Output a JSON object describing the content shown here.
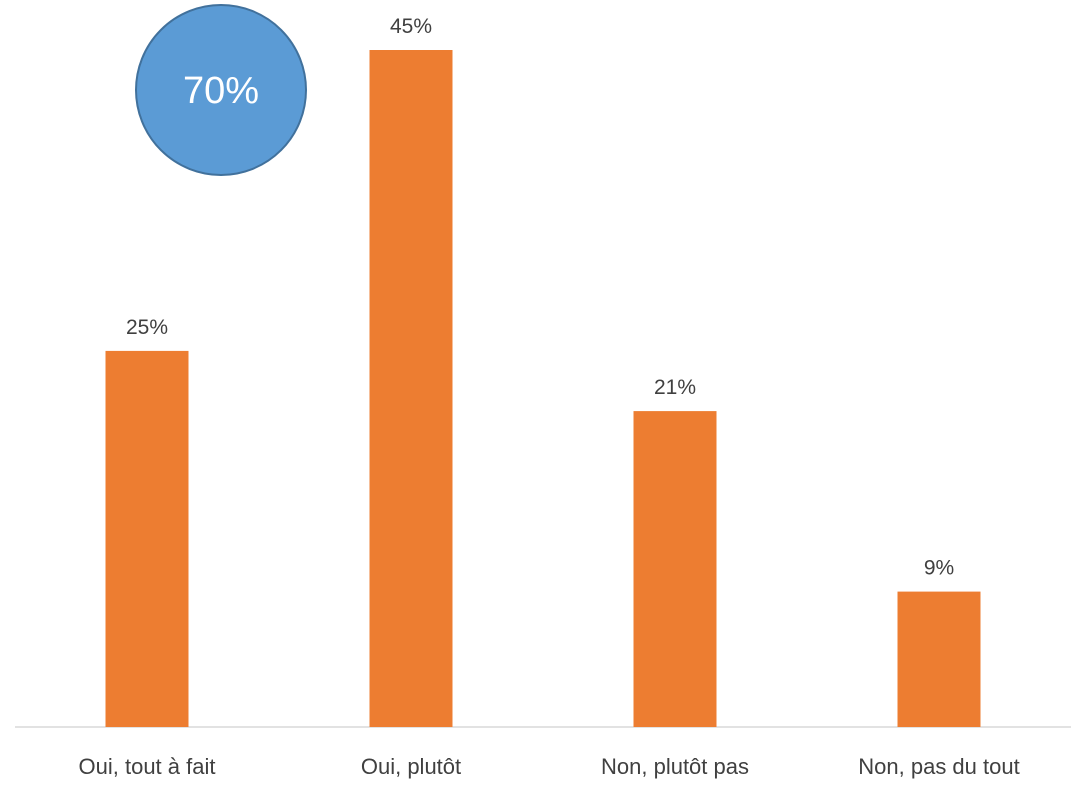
{
  "chart_data": {
    "type": "bar",
    "categories": [
      "Oui, tout à fait",
      "Oui, plutôt",
      "Non, plutôt pas",
      "Non, pas du tout"
    ],
    "values": [
      25,
      45,
      21,
      9
    ],
    "value_labels": [
      "25%",
      "45%",
      "21%",
      "9%"
    ],
    "title": "",
    "xlabel": "",
    "ylabel": "",
    "ylim": [
      0,
      45
    ],
    "grid": false,
    "legend": "none",
    "bar_color": "#ED7D31",
    "axis_color": "#D9D9D9",
    "label_color": "#404040",
    "annotation": {
      "shape": "circle",
      "text": "70%",
      "fill": "#5B9BD5",
      "stroke": "#41719C",
      "text_color": "#ffffff"
    }
  }
}
